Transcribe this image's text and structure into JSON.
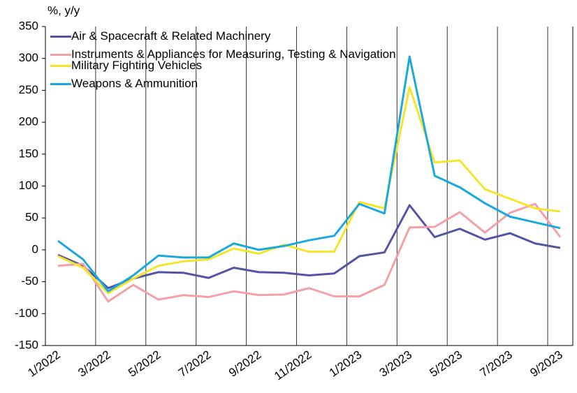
{
  "chart_data": {
    "type": "line",
    "y_label": "%, y/y",
    "categories": [
      "1/2022",
      null,
      "3/2022",
      null,
      "5/2022",
      null,
      "7/2022",
      null,
      "9/2022",
      null,
      "11/2022",
      null,
      "1/2023",
      null,
      "3/2023",
      null,
      "5/2023",
      null,
      "7/2023",
      null,
      "9/2023"
    ],
    "series": [
      {
        "name": "Air & Spacecraft & Related Machinery",
        "color": "#5354a3",
        "values": [
          -8,
          -25,
          -60,
          -45,
          -35,
          -36,
          -44,
          -28,
          -35,
          -36,
          -40,
          -37,
          -10,
          -4,
          70,
          20,
          33,
          16,
          26,
          10,
          3
        ]
      },
      {
        "name": "Instruments & Appliances for Measuring, Testing & Navigation",
        "color": "#f4a0a8",
        "values": [
          -25,
          -22,
          -81,
          -55,
          -78,
          -71,
          -74,
          -65,
          -71,
          -70,
          -60,
          -73,
          -73,
          -55,
          35,
          36,
          59,
          27,
          58,
          72,
          20
        ]
      },
      {
        "name": "Military Fighting Vehicles",
        "color": "#f5e52a",
        "values": [
          -10,
          -28,
          -68,
          -45,
          -25,
          -18,
          -15,
          2,
          -6,
          8,
          -3,
          -3,
          75,
          65,
          255,
          137,
          140,
          95,
          80,
          65,
          60
        ]
      },
      {
        "name": "Weapons & Ammunition",
        "color": "#1ba9dd",
        "values": [
          14,
          -15,
          -65,
          -40,
          -9,
          -12,
          -12,
          10,
          0,
          6,
          15,
          22,
          72,
          57,
          303,
          116,
          98,
          73,
          52,
          43,
          34
        ]
      }
    ],
    "ylim": [
      -150,
      350
    ],
    "yticks": [
      -150,
      -100,
      -50,
      0,
      50,
      100,
      150,
      200,
      250,
      300,
      350
    ],
    "grid": true,
    "legend": "upper left"
  }
}
